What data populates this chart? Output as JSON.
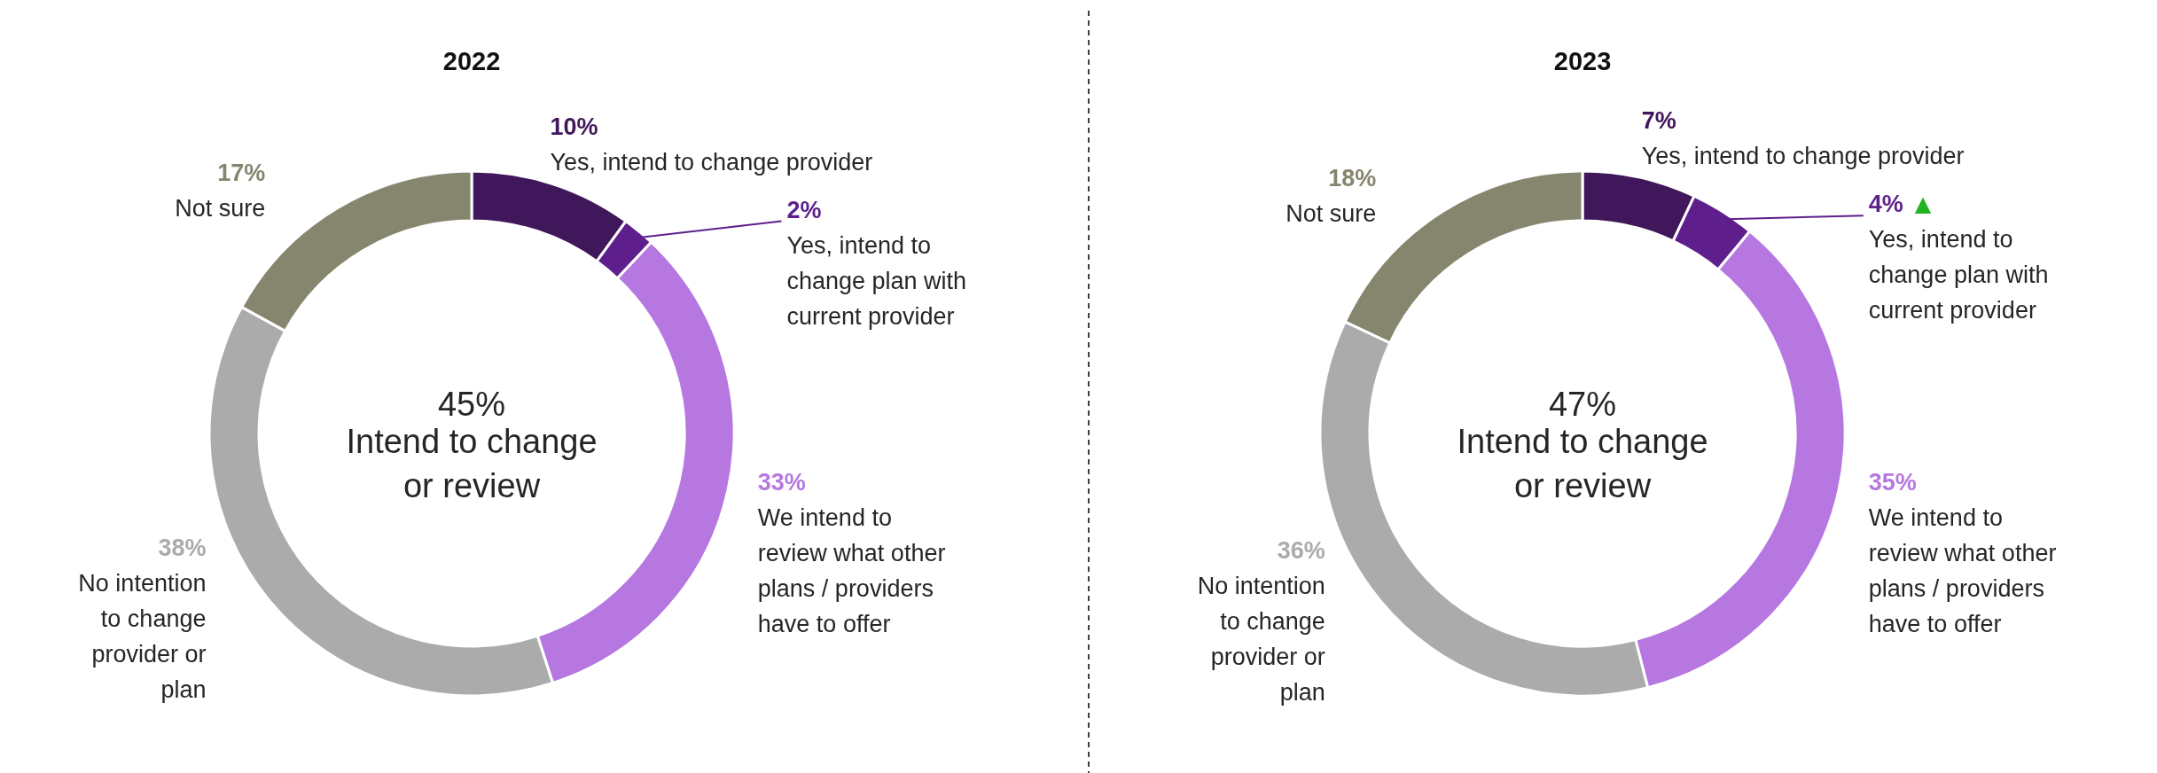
{
  "chart_data": [
    {
      "type": "donut",
      "title": "2022",
      "categories": [
        "Yes, intend to change provider",
        "Yes, intend to change plan with current provider",
        "We intend to review what other plans / providers have to offer",
        "No intention to change provider or plan",
        "Not sure"
      ],
      "values": [
        10,
        2,
        33,
        38,
        17
      ],
      "value_labels": [
        "10%",
        "2%",
        "33%",
        "38%",
        "17%"
      ],
      "colors": [
        "#40175a",
        "#5e1f8c",
        "#b678e0",
        "#ababab",
        "#86866f"
      ],
      "annotations": [
        "45%",
        "Intend to change or review"
      ]
    },
    {
      "type": "donut",
      "title": "2023",
      "categories": [
        "Yes, intend to change provider",
        "Yes, intend to change plan with current provider",
        "We intend to review what other plans / providers have to offer",
        "No intention to change provider or plan",
        "Not sure"
      ],
      "values": [
        7,
        4,
        35,
        36,
        18
      ],
      "value_labels": [
        "7%",
        "4%",
        "35%",
        "36%",
        "18%"
      ],
      "colors": [
        "#40175a",
        "#5e1f8c",
        "#b678e0",
        "#ababab",
        "#86866f"
      ],
      "annotations": [
        "47%",
        "Intend to change or review",
        "▲"
      ]
    }
  ]
}
